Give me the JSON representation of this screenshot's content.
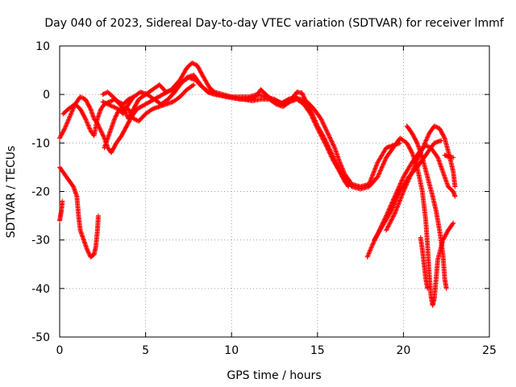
{
  "chart_data": {
    "type": "scatter",
    "title": "Day 040 of 2023, Sidereal Day-to-day VTEC variation (SDTVAR) for receiver lmmf",
    "xlabel": "GPS time / hours",
    "ylabel": "SDTVAR / TECUs",
    "xlim": [
      0,
      25
    ],
    "ylim": [
      -50,
      10
    ],
    "xticks": [
      0,
      5,
      10,
      15,
      20,
      25
    ],
    "yticks": [
      -50,
      -40,
      -30,
      -20,
      -10,
      0,
      10
    ],
    "grid": true,
    "marker": "+",
    "color": "#ff0000",
    "series": [
      {
        "name": "track-1",
        "points": [
          [
            0,
            -9
          ],
          [
            0.3,
            -7
          ],
          [
            0.6,
            -4.5
          ],
          [
            0.9,
            -2
          ],
          [
            1.2,
            -0.5
          ],
          [
            1.5,
            -1
          ],
          [
            1.8,
            -3
          ],
          [
            2.0,
            -5
          ],
          [
            2.2,
            -6
          ],
          [
            2.4,
            -7.5
          ],
          [
            2.6,
            -9
          ],
          [
            2.8,
            -11
          ],
          [
            3.0,
            -12
          ],
          [
            3.3,
            -10
          ],
          [
            3.6,
            -8.5
          ],
          [
            3.9,
            -6.5
          ],
          [
            4.2,
            -4.5
          ],
          [
            4.5,
            -3
          ],
          [
            5.0,
            -2
          ],
          [
            5.5,
            -1
          ],
          [
            6.0,
            0
          ],
          [
            6.5,
            1
          ],
          [
            7.0,
            3
          ],
          [
            7.4,
            5.5
          ],
          [
            7.7,
            6.5
          ],
          [
            8.0,
            6
          ],
          [
            8.3,
            4
          ],
          [
            8.7,
            1.5
          ],
          [
            9.0,
            0.5
          ],
          [
            9.5,
            0
          ],
          [
            10,
            -0.5
          ],
          [
            10.5,
            -1
          ],
          [
            11,
            -1
          ],
          [
            11.4,
            -0.5
          ],
          [
            11.7,
            1
          ],
          [
            12,
            0
          ],
          [
            12.3,
            -1
          ],
          [
            12.7,
            -1.5
          ],
          [
            13.1,
            -2
          ],
          [
            13.5,
            -1
          ],
          [
            13.8,
            0.5
          ],
          [
            14.1,
            0.3
          ],
          [
            14.4,
            -2
          ],
          [
            14.7,
            -4
          ],
          [
            15.0,
            -6.5
          ],
          [
            15.4,
            -9
          ],
          [
            15.8,
            -12
          ],
          [
            16.2,
            -15
          ],
          [
            16.6,
            -17.5
          ],
          [
            17.0,
            -19
          ],
          [
            17.5,
            -19.5
          ],
          [
            18,
            -19
          ],
          [
            18.5,
            -17
          ],
          [
            19,
            -13
          ],
          [
            19.5,
            -10.5
          ],
          [
            19.8,
            -9
          ],
          [
            20.2,
            -10
          ],
          [
            20.5,
            -12
          ],
          [
            20.8,
            -15
          ],
          [
            21.1,
            -20
          ],
          [
            21.3,
            -26
          ],
          [
            21.4,
            -31
          ],
          [
            21.5,
            -37
          ],
          [
            21.6,
            -41.5
          ],
          [
            21.7,
            -43.5
          ],
          [
            21.8,
            -42
          ],
          [
            21.9,
            -38
          ],
          [
            22.0,
            -34
          ],
          [
            22.3,
            -30
          ],
          [
            22.6,
            -28
          ],
          [
            22.9,
            -26.5
          ]
        ]
      },
      {
        "name": "track-2",
        "points": [
          [
            0.2,
            -4
          ],
          [
            0.5,
            -3
          ],
          [
            0.9,
            -2
          ],
          [
            1.2,
            -3
          ],
          [
            1.5,
            -5
          ],
          [
            1.8,
            -7.5
          ],
          [
            2.0,
            -8.5
          ],
          [
            2.2,
            -5
          ],
          [
            2.4,
            -3
          ],
          [
            2.6,
            -2
          ],
          [
            2.9,
            -1.5
          ],
          [
            3.2,
            -1
          ],
          [
            3.5,
            -2
          ],
          [
            3.8,
            -3.5
          ],
          [
            4.0,
            -5
          ],
          [
            4.3,
            -3
          ],
          [
            4.6,
            -1
          ],
          [
            5.0,
            0
          ],
          [
            5.4,
            1
          ],
          [
            5.8,
            2
          ],
          [
            6.2,
            0.5
          ],
          [
            6.6,
            1
          ],
          [
            7.0,
            2
          ],
          [
            7.4,
            3.5
          ],
          [
            7.8,
            4
          ],
          [
            8.2,
            2
          ],
          [
            8.6,
            0.5
          ],
          [
            9.0,
            0
          ],
          [
            9.5,
            -0.3
          ],
          [
            10,
            -0.5
          ],
          [
            10.5,
            -0.5
          ],
          [
            11,
            -0.5
          ],
          [
            11.5,
            0
          ],
          [
            12,
            -0.5
          ],
          [
            12.5,
            -1
          ],
          [
            12.9,
            -1.8
          ],
          [
            13.3,
            -1
          ],
          [
            13.7,
            -0.5
          ],
          [
            14.0,
            -1
          ],
          [
            14.4,
            -1.5
          ],
          [
            14.8,
            -3
          ],
          [
            15.2,
            -5
          ],
          [
            15.6,
            -8
          ],
          [
            16.0,
            -11
          ],
          [
            16.3,
            -14
          ],
          [
            16.6,
            -16.5
          ],
          [
            17.0,
            -18.5
          ],
          [
            17.5,
            -19
          ],
          [
            18,
            -18.5
          ],
          [
            18.5,
            -14
          ],
          [
            19.0,
            -11
          ],
          [
            19.4,
            -10.5
          ],
          [
            19.8,
            -10
          ]
        ]
      },
      {
        "name": "track-3",
        "points": [
          [
            2.5,
            -1.5
          ],
          [
            2.8,
            -2
          ],
          [
            3.1,
            -2.5
          ],
          [
            3.4,
            -3
          ],
          [
            3.7,
            -4
          ],
          [
            4.0,
            -2
          ],
          [
            4.3,
            -0.5
          ],
          [
            4.7,
            0.5
          ],
          [
            5.1,
            0
          ],
          [
            5.5,
            -1
          ],
          [
            5.9,
            -2
          ],
          [
            6.3,
            -1
          ],
          [
            6.7,
            0.5
          ],
          [
            7.1,
            2.5
          ],
          [
            7.5,
            3.5
          ],
          [
            7.9,
            3
          ],
          [
            8.3,
            1.5
          ],
          [
            8.7,
            0.5
          ],
          [
            9.2,
            0
          ],
          [
            9.7,
            -0.5
          ],
          [
            10.2,
            -0.8
          ],
          [
            10.7,
            -1
          ],
          [
            11.2,
            -1.3
          ],
          [
            11.7,
            -1
          ],
          [
            12.2,
            -1
          ],
          [
            12.6,
            -2
          ],
          [
            13.0,
            -2.5
          ],
          [
            13.4,
            -1.5
          ],
          [
            13.8,
            -1
          ],
          [
            14.2,
            -2
          ],
          [
            14.6,
            -4
          ],
          [
            15.0,
            -7
          ],
          [
            15.5,
            -10.5
          ],
          [
            15.9,
            -13.5
          ],
          [
            16.3,
            -16
          ],
          [
            16.6,
            -18
          ],
          [
            16.8,
            -19
          ]
        ]
      },
      {
        "name": "track-4",
        "points": [
          [
            2.6,
            -11
          ],
          [
            2.8,
            -9
          ],
          [
            3.0,
            -7
          ],
          [
            3.2,
            -5
          ],
          [
            3.4,
            -3.5
          ],
          [
            3.7,
            -2.5
          ],
          [
            4.0,
            -3
          ],
          [
            4.3,
            -5
          ],
          [
            4.6,
            -5.5
          ],
          [
            5.0,
            -4
          ],
          [
            5.4,
            -3
          ],
          [
            5.8,
            -2.5
          ],
          [
            6.2,
            -2
          ],
          [
            6.6,
            -1.5
          ],
          [
            7.0,
            -0.5
          ],
          [
            7.4,
            1
          ],
          [
            7.8,
            2
          ]
        ]
      },
      {
        "name": "track-5",
        "points": [
          [
            2.5,
            0
          ],
          [
            2.8,
            0.5
          ],
          [
            3.1,
            -0.5
          ],
          [
            3.4,
            -1.5
          ],
          [
            3.7,
            -2
          ],
          [
            4.0,
            -1
          ],
          [
            4.3,
            -0.5
          ]
        ]
      },
      {
        "name": "track-6",
        "points": [
          [
            0,
            -15
          ],
          [
            0.2,
            -16
          ],
          [
            0.5,
            -17.5
          ],
          [
            0.8,
            -19
          ],
          [
            1.0,
            -21
          ],
          [
            1.1,
            -25
          ],
          [
            1.2,
            -28
          ],
          [
            1.4,
            -30
          ],
          [
            1.6,
            -32
          ],
          [
            1.8,
            -33.5
          ],
          [
            2.0,
            -33
          ],
          [
            2.1,
            -31.5
          ],
          [
            2.2,
            -28
          ],
          [
            2.25,
            -25
          ]
        ]
      },
      {
        "name": "track-7",
        "points": [
          [
            0,
            -26
          ],
          [
            0.05,
            -25
          ],
          [
            0.1,
            -24
          ],
          [
            0.15,
            -22
          ]
        ]
      },
      {
        "name": "track-8",
        "points": [
          [
            17.9,
            -33.5
          ],
          [
            18.2,
            -31
          ],
          [
            18.6,
            -28
          ],
          [
            19.0,
            -25
          ],
          [
            19.5,
            -21
          ],
          [
            20,
            -17
          ],
          [
            20.5,
            -14
          ],
          [
            21,
            -11.5
          ],
          [
            21.3,
            -10.5
          ],
          [
            21.6,
            -11
          ],
          [
            22,
            -13
          ],
          [
            22.3,
            -16
          ],
          [
            22.6,
            -19
          ],
          [
            22.9,
            -20
          ],
          [
            23.0,
            -21
          ]
        ]
      },
      {
        "name": "track-9",
        "points": [
          [
            18.3,
            -30
          ],
          [
            18.8,
            -27
          ],
          [
            19.3,
            -24
          ],
          [
            19.8,
            -20
          ],
          [
            20.3,
            -17
          ],
          [
            20.8,
            -15
          ],
          [
            21.3,
            -12.5
          ],
          [
            21.8,
            -10
          ],
          [
            22.2,
            -9.5
          ]
        ]
      },
      {
        "name": "track-10",
        "points": [
          [
            19.0,
            -28
          ],
          [
            19.5,
            -24.5
          ],
          [
            20,
            -20
          ],
          [
            20.5,
            -16
          ],
          [
            21,
            -12
          ],
          [
            21.5,
            -8
          ],
          [
            21.8,
            -6.5
          ],
          [
            22.1,
            -7
          ],
          [
            22.4,
            -9
          ],
          [
            22.7,
            -13
          ],
          [
            22.9,
            -16
          ],
          [
            23.0,
            -19
          ]
        ]
      },
      {
        "name": "track-11",
        "points": [
          [
            20.2,
            -6.5
          ],
          [
            20.5,
            -8
          ],
          [
            20.8,
            -10
          ],
          [
            21.1,
            -13
          ],
          [
            21.4,
            -17
          ],
          [
            21.7,
            -21
          ],
          [
            21.9,
            -24
          ],
          [
            22.1,
            -28
          ],
          [
            22.3,
            -33
          ],
          [
            22.4,
            -38
          ],
          [
            22.5,
            -40
          ]
        ]
      },
      {
        "name": "track-12",
        "points": [
          [
            21.0,
            -29.5
          ],
          [
            21.1,
            -32
          ],
          [
            21.2,
            -35
          ],
          [
            21.3,
            -38
          ],
          [
            21.4,
            -40
          ]
        ]
      },
      {
        "name": "track-13",
        "points": [
          [
            22.4,
            -12.5
          ],
          [
            22.6,
            -12.8
          ],
          [
            22.9,
            -13
          ]
        ]
      }
    ]
  }
}
